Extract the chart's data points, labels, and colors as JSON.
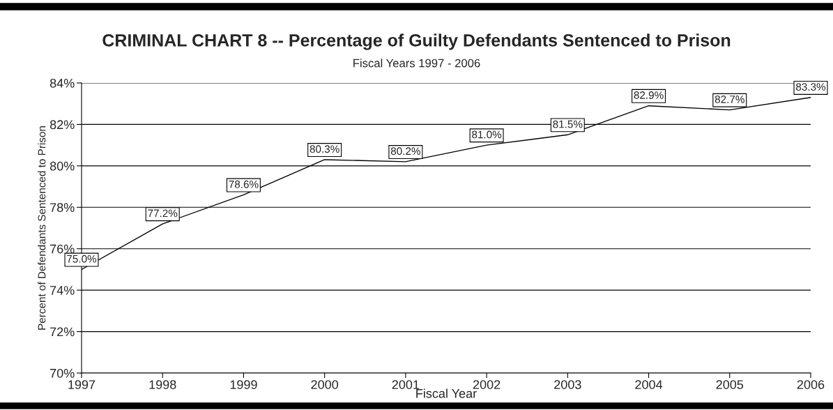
{
  "chart_data": {
    "type": "line",
    "title": "CRIMINAL CHART 8 -- Percentage of Guilty Defendants Sentenced to Prison",
    "subtitle": "Fiscal Years 1997 - 2006",
    "xlabel": "Fiscal Year",
    "ylabel": "Percent of Defendants Sentenced to Prison",
    "x": [
      1997,
      1998,
      1999,
      2000,
      2001,
      2002,
      2003,
      2004,
      2005,
      2006
    ],
    "series": [
      {
        "color": "#000000",
        "values": [
          75.0,
          77.2,
          78.6,
          80.3,
          80.2,
          81.0,
          81.5,
          82.9,
          82.7,
          83.3
        ],
        "value_labels": [
          "75.0%",
          "77.2%",
          "78.6%",
          "80.3%",
          "80.2%",
          "81.0%",
          "81.5%",
          "82.9%",
          "82.7%",
          "83.3%"
        ]
      }
    ],
    "xlim": [
      1997,
      2006
    ],
    "xticks": [
      1997,
      1998,
      1999,
      2000,
      2001,
      2002,
      2003,
      2004,
      2005,
      2006
    ],
    "ylim": [
      70,
      84
    ],
    "yticks": [
      {
        "value": 70,
        "label": "70%"
      },
      {
        "value": 72,
        "label": "72%"
      },
      {
        "value": 74,
        "label": "74%"
      },
      {
        "value": 76,
        "label": "76%"
      },
      {
        "value": 78,
        "label": "78%"
      },
      {
        "value": 80,
        "label": "80%"
      },
      {
        "value": 82,
        "label": "82%"
      },
      {
        "value": 84,
        "label": "84%"
      }
    ],
    "grid": "y",
    "marker": "none",
    "line_style": "solid"
  }
}
